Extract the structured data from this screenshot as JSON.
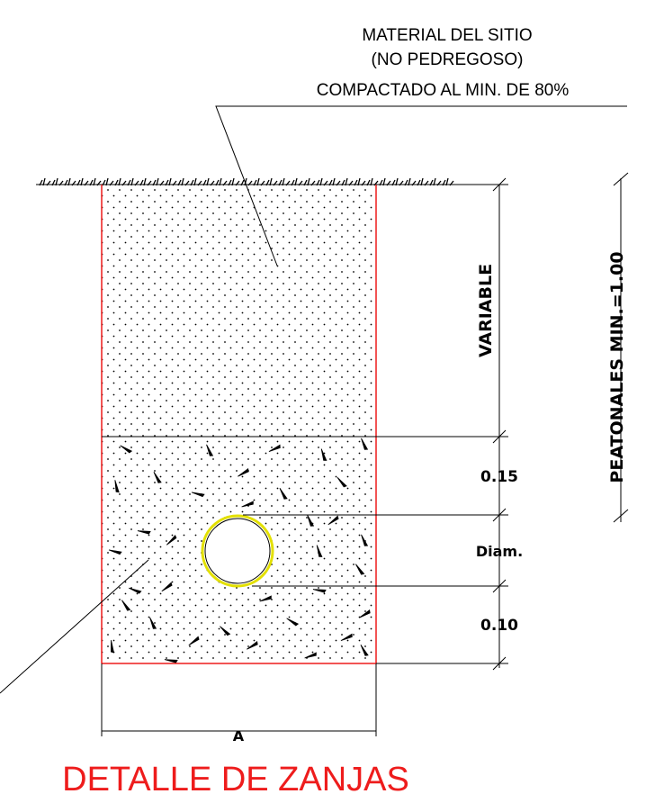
{
  "material_note": {
    "line1": "MATERIAL DEL SITIO",
    "line2": "(NO PEDREGOSO)",
    "line3": "COMPACTADO AL MIN. DE 80%"
  },
  "dimensions": {
    "variable": "VARIABLE",
    "bed_top": "0.15",
    "diameter": "Diam.",
    "bed_bottom": "0.10",
    "width": "A",
    "pedestrian_min": "PEATONALES MIN.=1.00"
  },
  "title": "DETALLE DE ZANJAS",
  "colors": {
    "trench_outline": "#ee1c1c",
    "pipe_outline": "#e3e000",
    "title": "#ee1c1c"
  }
}
